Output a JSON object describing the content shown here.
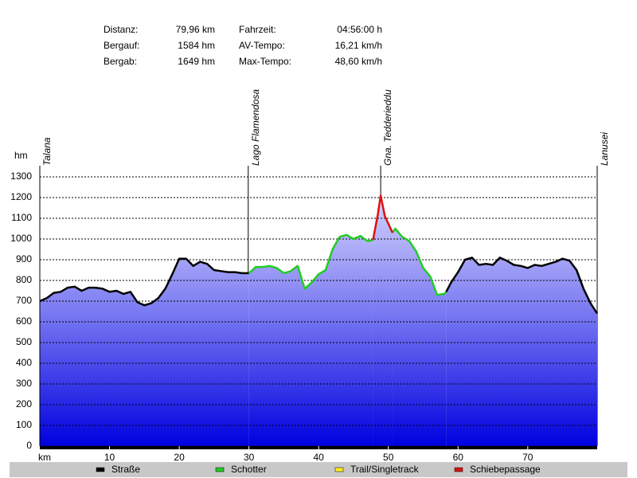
{
  "chart_data": {
    "type": "line",
    "stats": [
      {
        "label": "Distanz:",
        "value": "79,96 km"
      },
      {
        "label": "Bergauf:",
        "value": "1584 hm"
      },
      {
        "label": "Bergab:",
        "value": "1649 hm"
      },
      {
        "label": "Fahrzeit:",
        "value": "04:56:00 h"
      },
      {
        "label": "AV-Tempo:",
        "value": "16,21 km/h"
      },
      {
        "label": "Max-Tempo:",
        "value": "48,60 km/h"
      }
    ],
    "y_label": "hm",
    "x_label": "km",
    "annotations": [
      {
        "label": "Talana",
        "x": 0
      },
      {
        "label": "Lago Flamendosa",
        "x": 29.9
      },
      {
        "label": "Gna. Tedderieddu",
        "x": 48.9
      },
      {
        "label": "Lanusei",
        "x": 79.96
      }
    ],
    "xlim": [
      0,
      79.96
    ],
    "xticks": [
      10,
      20,
      30,
      40,
      50,
      60,
      70
    ],
    "ylim": [
      0,
      1300
    ],
    "yticks": [
      0,
      100,
      200,
      300,
      400,
      500,
      600,
      700,
      800,
      900,
      1000,
      1100,
      1200,
      1300
    ],
    "grid": true,
    "series": [
      {
        "name": "Straße",
        "color": "#000000",
        "x": [
          0,
          1,
          2,
          3,
          4,
          5,
          6,
          7,
          8,
          9,
          10,
          11,
          12,
          13,
          14,
          15,
          16,
          17,
          18,
          19,
          20,
          21,
          22,
          23,
          24,
          25,
          26,
          27,
          28,
          29,
          30,
          null,
          58.3,
          59,
          60,
          61,
          62,
          63,
          64,
          65,
          66,
          67,
          68,
          69,
          70,
          71,
          72,
          73,
          74,
          75,
          76,
          77,
          78,
          79,
          79.96
        ],
        "values": [
          700,
          715,
          740,
          745,
          765,
          770,
          750,
          765,
          765,
          760,
          745,
          750,
          735,
          745,
          695,
          680,
          690,
          715,
          760,
          830,
          905,
          905,
          870,
          890,
          880,
          850,
          845,
          840,
          840,
          835,
          835,
          null,
          745,
          790,
          840,
          900,
          910,
          875,
          880,
          875,
          910,
          895,
          875,
          870,
          860,
          875,
          870,
          880,
          890,
          905,
          895,
          850,
          760,
          690,
          640
        ]
      },
      {
        "name": "Schotter",
        "color": "#22cc22",
        "x": [
          30,
          31,
          32,
          33,
          34,
          35,
          36,
          37,
          38,
          39,
          40,
          41,
          42,
          43,
          44,
          45,
          46,
          47,
          47.8,
          null,
          50.6,
          51,
          52,
          53,
          54,
          55,
          56,
          57,
          58,
          58.3
        ],
        "values": [
          835,
          865,
          865,
          870,
          860,
          835,
          845,
          870,
          760,
          790,
          830,
          850,
          950,
          1010,
          1020,
          1000,
          1015,
          990,
          995,
          null,
          1030,
          1050,
          1010,
          990,
          940,
          860,
          820,
          730,
          735,
          745
        ]
      },
      {
        "name": "Trail/Singletrack",
        "color": "#ffee22",
        "x": [],
        "values": []
      },
      {
        "name": "Schiebepassage",
        "color": "#dd1111",
        "x": [
          47.8,
          48.5,
          48.9,
          49.5,
          50.6
        ],
        "values": [
          995,
          1120,
          1210,
          1110,
          1030
        ]
      }
    ]
  }
}
